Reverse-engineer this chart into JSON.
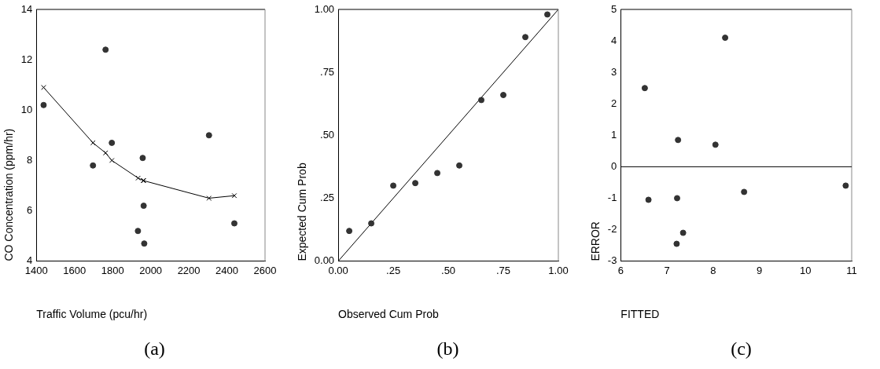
{
  "chart_data": [
    {
      "type": "scatter",
      "xlabel": "Traffic Volume (pcu/hr)",
      "ylabel": "CO Concentration (ppm/hr)",
      "xlim": [
        1400,
        2600
      ],
      "xticks": [
        1400,
        1600,
        1800,
        2000,
        2200,
        2400,
        2600
      ],
      "ylim": [
        4,
        14
      ],
      "yticks": [
        4,
        6,
        8,
        10,
        12,
        14
      ],
      "grid": false,
      "legend": false,
      "annotations": [
        "(a)"
      ],
      "series": [
        {
          "marker": "circle",
          "color": "#333333",
          "x": [
            1438,
            1763,
            1796,
            1697,
            1958,
            1963,
            2306,
            1933,
            1966,
            2439
          ],
          "values": [
            10.2,
            12.4,
            8.7,
            7.8,
            8.1,
            6.2,
            9.0,
            5.2,
            4.7,
            5.5
          ]
        },
        {
          "type": "line",
          "marker": "cross",
          "line_style": "solid",
          "color": "#000000",
          "x": [
            1438,
            1697,
            1763,
            1796,
            1934,
            1961,
            1963,
            2306,
            2439
          ],
          "values": [
            10.9,
            8.7,
            8.3,
            8.0,
            7.3,
            7.2,
            7.2,
            6.5,
            6.6
          ]
        }
      ]
    },
    {
      "type": "scatter",
      "xlabel": "Observed Cum Prob",
      "ylabel": "Expected Cum Prob",
      "xlim": [
        0,
        1
      ],
      "xticks": [
        {
          "value": 0,
          "label": "0.00"
        },
        {
          "value": 0.25,
          "label": ".25"
        },
        {
          "value": 0.5,
          "label": ".50"
        },
        {
          "value": 0.75,
          "label": ".75"
        },
        {
          "value": 1,
          "label": "1.00"
        }
      ],
      "ylim": [
        0,
        1
      ],
      "yticks": [
        {
          "value": 0,
          "label": "0.00"
        },
        {
          "value": 0.25,
          "label": ".25"
        },
        {
          "value": 0.5,
          "label": ".50"
        },
        {
          "value": 0.75,
          "label": ".75"
        },
        {
          "value": 1,
          "label": "1.00"
        }
      ],
      "grid": false,
      "legend": false,
      "annotations": [
        "(b)"
      ],
      "series": [
        {
          "marker": "circle",
          "color": "#333333",
          "x": [
            0.05,
            0.15,
            0.25,
            0.35,
            0.45,
            0.55,
            0.65,
            0.75,
            0.85,
            0.95
          ],
          "values": [
            0.12,
            0.15,
            0.3,
            0.31,
            0.35,
            0.38,
            0.64,
            0.66,
            0.89,
            0.98
          ]
        },
        {
          "type": "line",
          "marker": "none",
          "line_style": "solid",
          "color": "#000000",
          "x": [
            0,
            1
          ],
          "values": [
            0,
            1
          ]
        }
      ]
    },
    {
      "type": "scatter",
      "xlabel": "FITTED",
      "ylabel": "ERROR",
      "xlim": [
        6,
        11
      ],
      "xticks": [
        6,
        7,
        8,
        9,
        10,
        11
      ],
      "ylim": [
        -3,
        5
      ],
      "yticks": [
        -3,
        -2,
        -1,
        0,
        1,
        2,
        3,
        4,
        5
      ],
      "grid": false,
      "legend": false,
      "annotations": [
        "(c)"
      ],
      "ref_lines": [
        {
          "axis": "y",
          "value": 0,
          "color": "#000000"
        }
      ],
      "series": [
        {
          "marker": "circle",
          "color": "#333333",
          "x": [
            6.52,
            8.26,
            7.24,
            8.05,
            6.6,
            7.22,
            8.67,
            10.87,
            7.35,
            7.21
          ],
          "values": [
            2.5,
            4.1,
            0.85,
            0.7,
            -1.05,
            -1.0,
            -0.8,
            -0.6,
            -2.1,
            -2.45
          ]
        }
      ]
    }
  ]
}
